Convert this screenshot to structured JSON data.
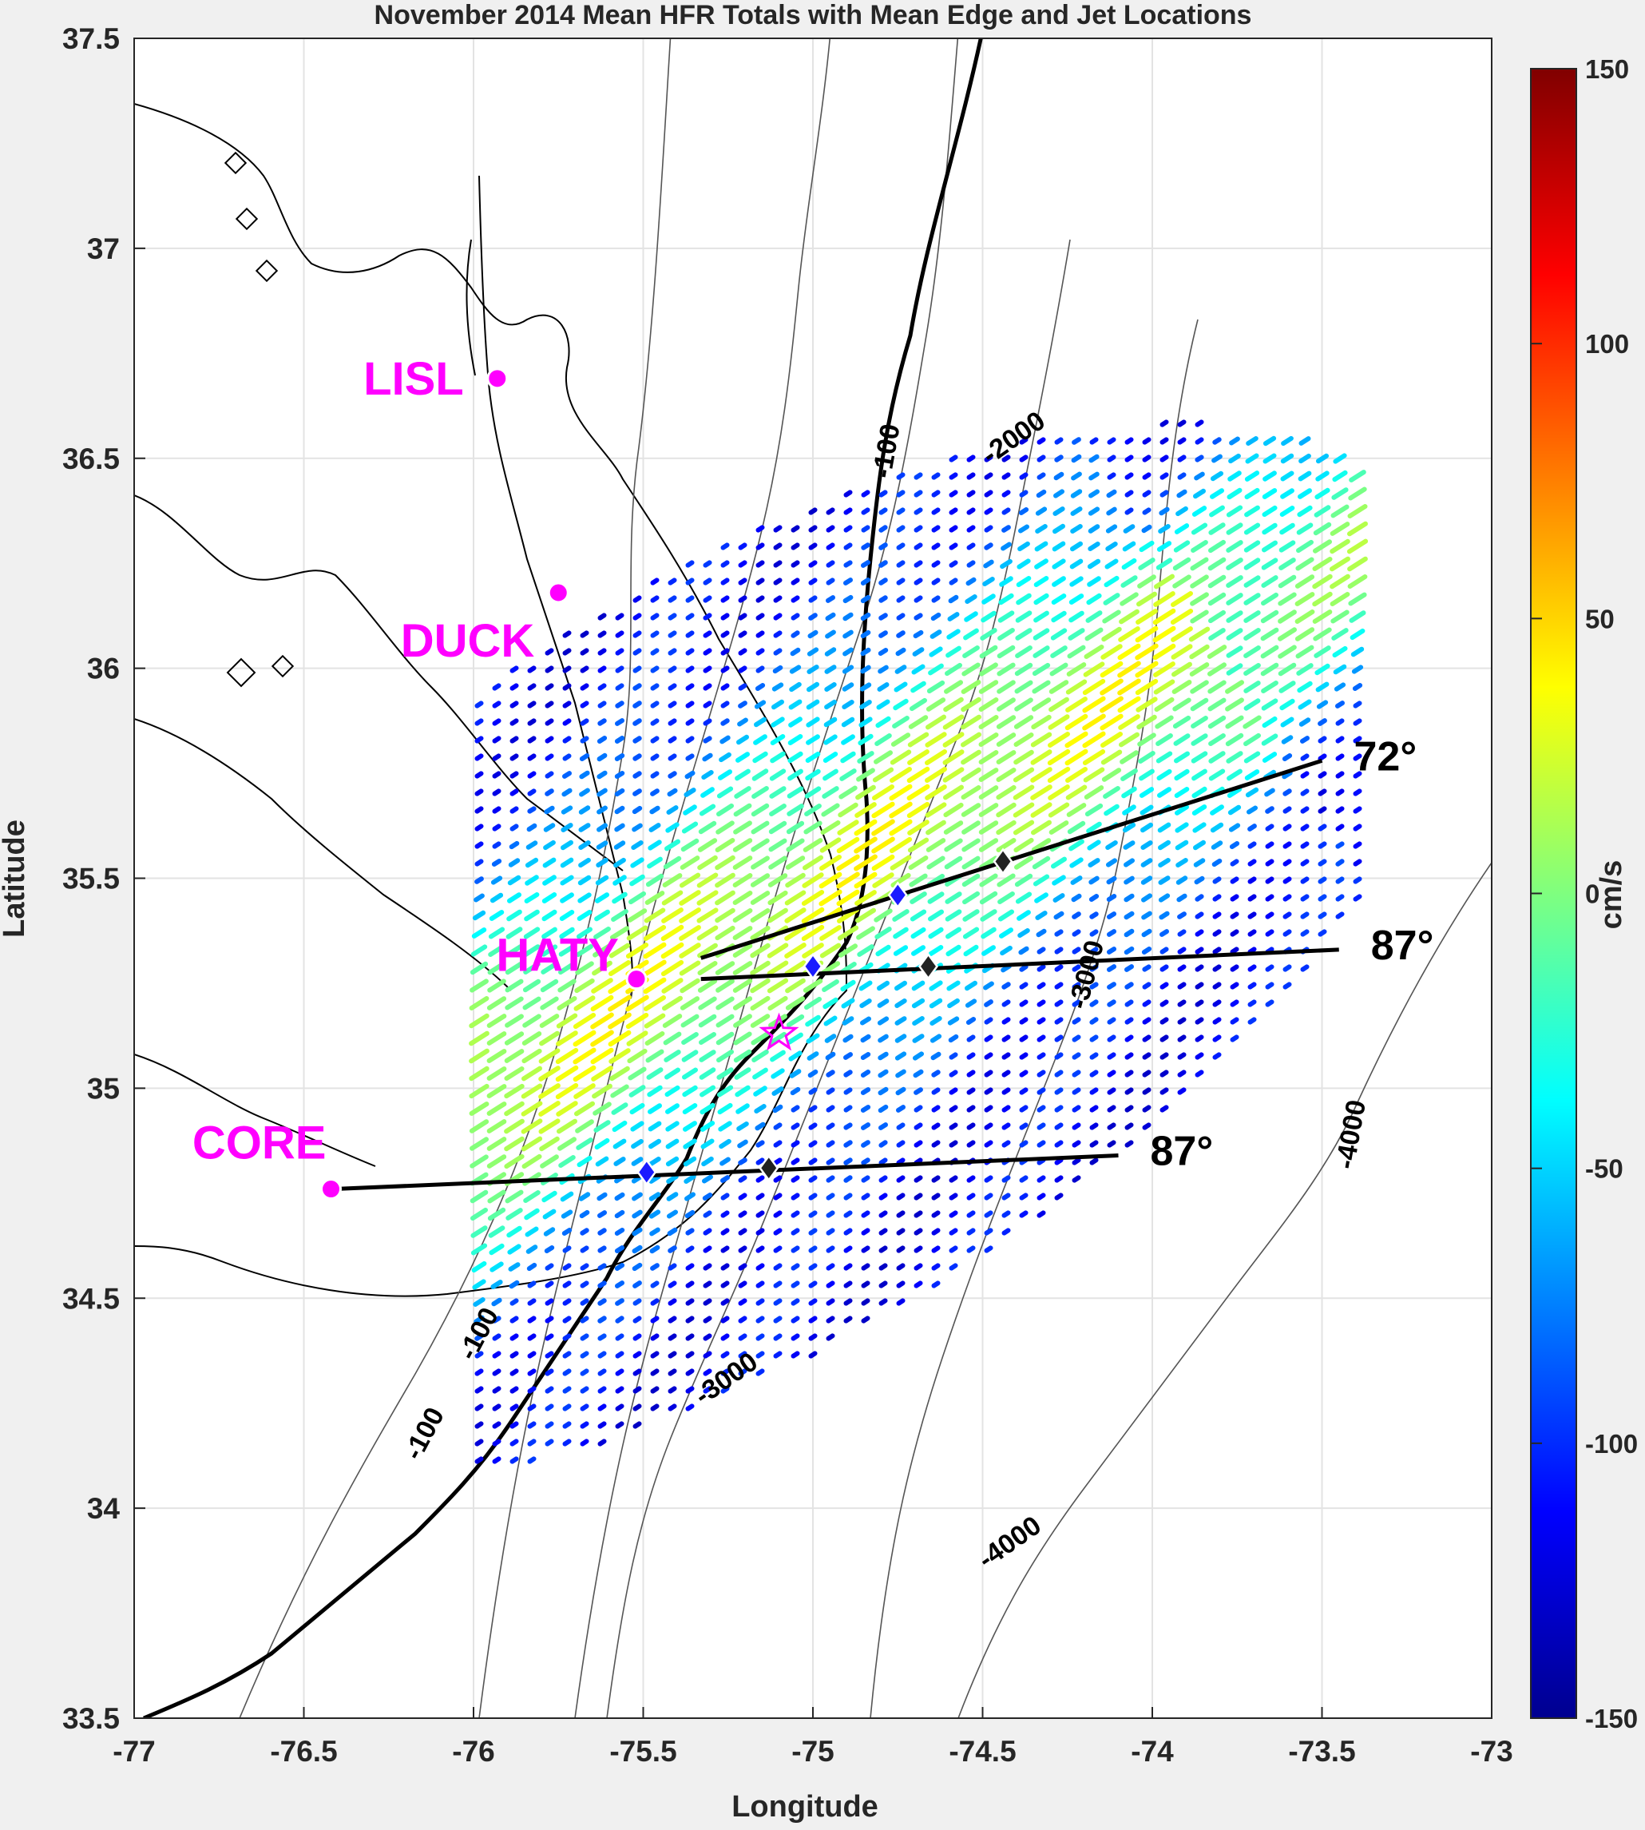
{
  "title": "November 2014 Mean HFR Totals with Mean Edge and Jet Locations",
  "xlabel": "Longitude",
  "ylabel": "Latitude",
  "x_ticks": [
    "-77",
    "-76.5",
    "-76",
    "-75.5",
    "-75",
    "-74.5",
    "-74",
    "-73.5",
    "-73"
  ],
  "y_ticks": [
    "37.5",
    "37",
    "36.5",
    "36",
    "35.5",
    "35",
    "34.5",
    "34",
    "33.5"
  ],
  "xlim": [
    -77,
    -73
  ],
  "ylim": [
    33.5,
    37.5
  ],
  "colorbar": {
    "label": "cm/s",
    "ticks": [
      "150",
      "100",
      "50",
      "0",
      "-50",
      "-100",
      "-150"
    ],
    "range": [
      -150,
      150
    ]
  },
  "stations": [
    {
      "name": "LISL",
      "lon": -75.93,
      "lat": 36.69
    },
    {
      "name": "DUCK",
      "lon": -75.75,
      "lat": 36.18
    },
    {
      "name": "HATY",
      "lon": -75.52,
      "lat": 35.26
    },
    {
      "name": "CORE",
      "lon": -76.42,
      "lat": 34.76
    }
  ],
  "transects": [
    {
      "angle": "72°",
      "start": [
        -75.33,
        35.31
      ],
      "end": [
        -73.5,
        35.78
      ],
      "edge": [
        -74.75,
        35.46
      ],
      "jet": [
        -74.44,
        35.54
      ]
    },
    {
      "angle": "87°",
      "start": [
        -75.33,
        35.26
      ],
      "end": [
        -73.45,
        35.33
      ],
      "edge": [
        -75.0,
        35.29
      ],
      "jet": [
        -74.66,
        35.29
      ]
    },
    {
      "angle": "87°",
      "start": [
        -76.41,
        34.76
      ],
      "end": [
        -74.1,
        34.84
      ],
      "edge": [
        -75.49,
        34.8
      ],
      "jet": [
        -75.13,
        34.81
      ]
    }
  ],
  "star": {
    "lon": -75.1,
    "lat": 35.13
  },
  "contour_labels": [
    "-100",
    "-2000",
    "-3000",
    "-4000",
    "-100",
    "-100",
    "-3000",
    "-4000"
  ],
  "colors": {
    "station": "#ff00ff",
    "edge_marker": "#1a1aff",
    "jet_marker": "#222222",
    "land_line": "#000000"
  }
}
